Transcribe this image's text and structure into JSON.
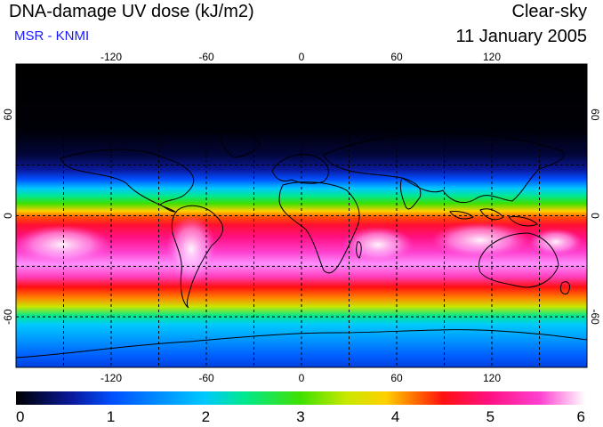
{
  "header": {
    "title": "DNA-damage UV dose (kJ/m2)",
    "source": "MSR - KNMI",
    "condition": "Clear-sky",
    "date": "11 January 2005"
  },
  "map": {
    "projection": "equirectangular",
    "lon_range": [
      -180,
      180
    ],
    "lat_range": [
      -90,
      90
    ],
    "lon_ticks": [
      "-120",
      "-60",
      "0",
      "60",
      "120"
    ],
    "lat_ticks": [
      "60",
      "0",
      "-60"
    ],
    "lon_tick_values": [
      -120,
      -60,
      0,
      60,
      120
    ],
    "lat_tick_values": [
      60,
      0,
      -60
    ],
    "grid_lons": [
      -150,
      -120,
      -90,
      -60,
      -30,
      0,
      30,
      60,
      90,
      120,
      150
    ],
    "grid_lats": [
      60,
      30,
      0,
      -30,
      -60
    ]
  },
  "colorbar": {
    "labels": [
      "0",
      "1",
      "2",
      "3",
      "4",
      "5",
      "6"
    ],
    "min": 0,
    "max": 6,
    "colors": [
      "#000000",
      "#0a1aa0",
      "#0050ff",
      "#00c8ff",
      "#00e890",
      "#40e000",
      "#c8e800",
      "#ffd000",
      "#ff7000",
      "#ff1010",
      "#ff1080",
      "#ff40d0",
      "#ff90ff",
      "#ffffff"
    ]
  }
}
